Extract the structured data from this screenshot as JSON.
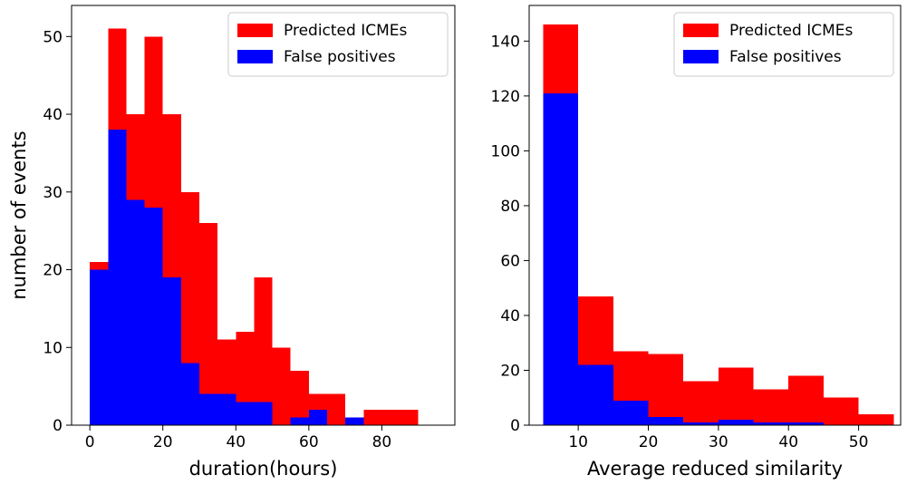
{
  "chart_data": [
    {
      "type": "bar",
      "xlabel": "duration(hours)",
      "ylabel": "number of events",
      "xlim": [
        -5,
        100
      ],
      "ylim": [
        0,
        54
      ],
      "xticks": [
        0,
        20,
        40,
        60,
        80
      ],
      "yticks": [
        0,
        10,
        20,
        30,
        40,
        50
      ],
      "bin_edges": [
        0,
        5,
        10,
        15,
        20,
        25,
        30,
        35,
        40,
        45,
        50,
        55,
        60,
        65,
        70,
        75,
        80,
        85,
        90
      ],
      "legend_position": "top-right",
      "series": [
        {
          "name": "Predicted ICMEs",
          "color": "#ff0000",
          "values": [
            21,
            51,
            40,
            50,
            40,
            30,
            26,
            11,
            12,
            19,
            10,
            7,
            4,
            4,
            1,
            2,
            2,
            2
          ]
        },
        {
          "name": "False positives",
          "color": "#0000ff",
          "values": [
            20,
            38,
            29,
            28,
            19,
            8,
            4,
            4,
            3,
            3,
            0,
            1,
            2,
            0,
            1,
            0,
            0,
            0
          ]
        }
      ]
    },
    {
      "type": "bar",
      "xlabel": "Average reduced similarity",
      "ylabel": "",
      "xlim": [
        3,
        56
      ],
      "ylim": [
        0,
        153
      ],
      "xticks": [
        10,
        20,
        30,
        40,
        50
      ],
      "yticks": [
        0,
        20,
        40,
        60,
        80,
        100,
        120,
        140
      ],
      "bin_edges": [
        5,
        10,
        15,
        20,
        25,
        30,
        35,
        40,
        45,
        50,
        55
      ],
      "legend_position": "top-right",
      "series": [
        {
          "name": "Predicted ICMEs",
          "color": "#ff0000",
          "values": [
            146,
            47,
            27,
            26,
            16,
            21,
            13,
            18,
            10,
            4
          ]
        },
        {
          "name": "False positives",
          "color": "#0000ff",
          "values": [
            121,
            22,
            9,
            3,
            1,
            2,
            1,
            1,
            0,
            0
          ]
        }
      ]
    }
  ]
}
